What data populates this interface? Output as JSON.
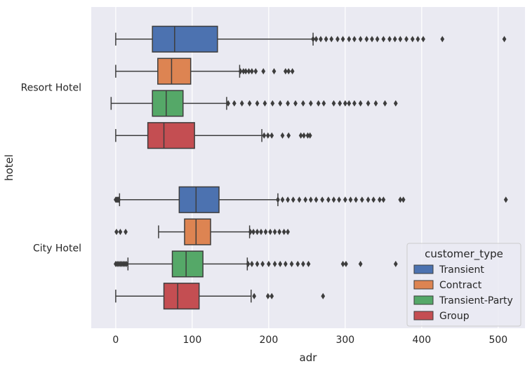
{
  "chart_data": {
    "type": "boxplot",
    "orientation": "horizontal",
    "xlabel": "adr",
    "ylabel": "hotel",
    "xlim": [
      -32,
      535
    ],
    "x_ticks": [
      0,
      100,
      200,
      300,
      400,
      500
    ],
    "grid": true,
    "categories": [
      "Resort Hotel",
      "City Hotel"
    ],
    "legend": {
      "title": "customer_type",
      "placement": "lower-right"
    },
    "series": [
      {
        "name": "Transient",
        "color": "#4c72b0",
        "boxes": [
          {
            "min": 0,
            "q1": 48,
            "median": 77,
            "q3": 133,
            "max": 258,
            "outliers": [
              258,
              262,
              268,
              275,
              282,
              290,
              297,
              305,
              312,
              320,
              328,
              335,
              342,
              350,
              358,
              365,
              372,
              380,
              388,
              395,
              402,
              427,
              508
            ]
          },
          {
            "min": 5,
            "q1": 83,
            "median": 105,
            "q3": 135,
            "max": 212,
            "outliers": [
              0,
              1,
              2,
              3,
              4,
              212,
              218,
              225,
              232,
              240,
              248,
              255,
              262,
              270,
              278,
              285,
              292,
              300,
              307,
              314,
              322,
              330,
              337,
              345,
              350,
              372,
              376,
              510
            ]
          }
        ]
      },
      {
        "name": "Contract",
        "color": "#dd8452",
        "boxes": [
          {
            "min": 0,
            "q1": 55,
            "median": 73,
            "q3": 98,
            "max": 162,
            "outliers": [
              163,
              167,
              170,
              174,
              178,
              183,
              193,
              207,
              222,
              226,
              231
            ]
          },
          {
            "min": 56,
            "q1": 90,
            "median": 105,
            "q3": 124,
            "max": 175,
            "outliers": [
              1,
              6,
              13,
              176,
              180,
              185,
              190,
              196,
              202,
              208,
              214,
              220,
              225
            ]
          }
        ]
      },
      {
        "name": "Transient-Party",
        "color": "#55a868",
        "boxes": [
          {
            "min": -6,
            "q1": 48,
            "median": 66,
            "q3": 88,
            "max": 145,
            "outliers": [
              147,
              155,
              165,
              175,
              185,
              195,
              205,
              215,
              225,
              235,
              245,
              255,
              265,
              272,
              285,
              293,
              300,
              305,
              312,
              320,
              330,
              340,
              352,
              366
            ]
          },
          {
            "min": 16,
            "q1": 74,
            "median": 92,
            "q3": 114,
            "max": 172,
            "outliers": [
              0,
              2,
              4,
              6,
              8,
              10,
              12,
              14,
              173,
              178,
              185,
              192,
              200,
              208,
              215,
              222,
              230,
              238,
              245,
              252,
              297,
              301,
              320,
              366
            ]
          }
        ]
      },
      {
        "name": "Group",
        "color": "#c44e52",
        "boxes": [
          {
            "min": 0,
            "q1": 42,
            "median": 63,
            "q3": 103,
            "max": 191,
            "outliers": [
              194,
              199,
              204,
              218,
              226,
              242,
              246,
              251,
              254
            ]
          },
          {
            "min": 0,
            "q1": 63,
            "median": 81,
            "q3": 109,
            "max": 177,
            "outliers": [
              181,
              199,
              204,
              271
            ]
          }
        ]
      }
    ]
  }
}
